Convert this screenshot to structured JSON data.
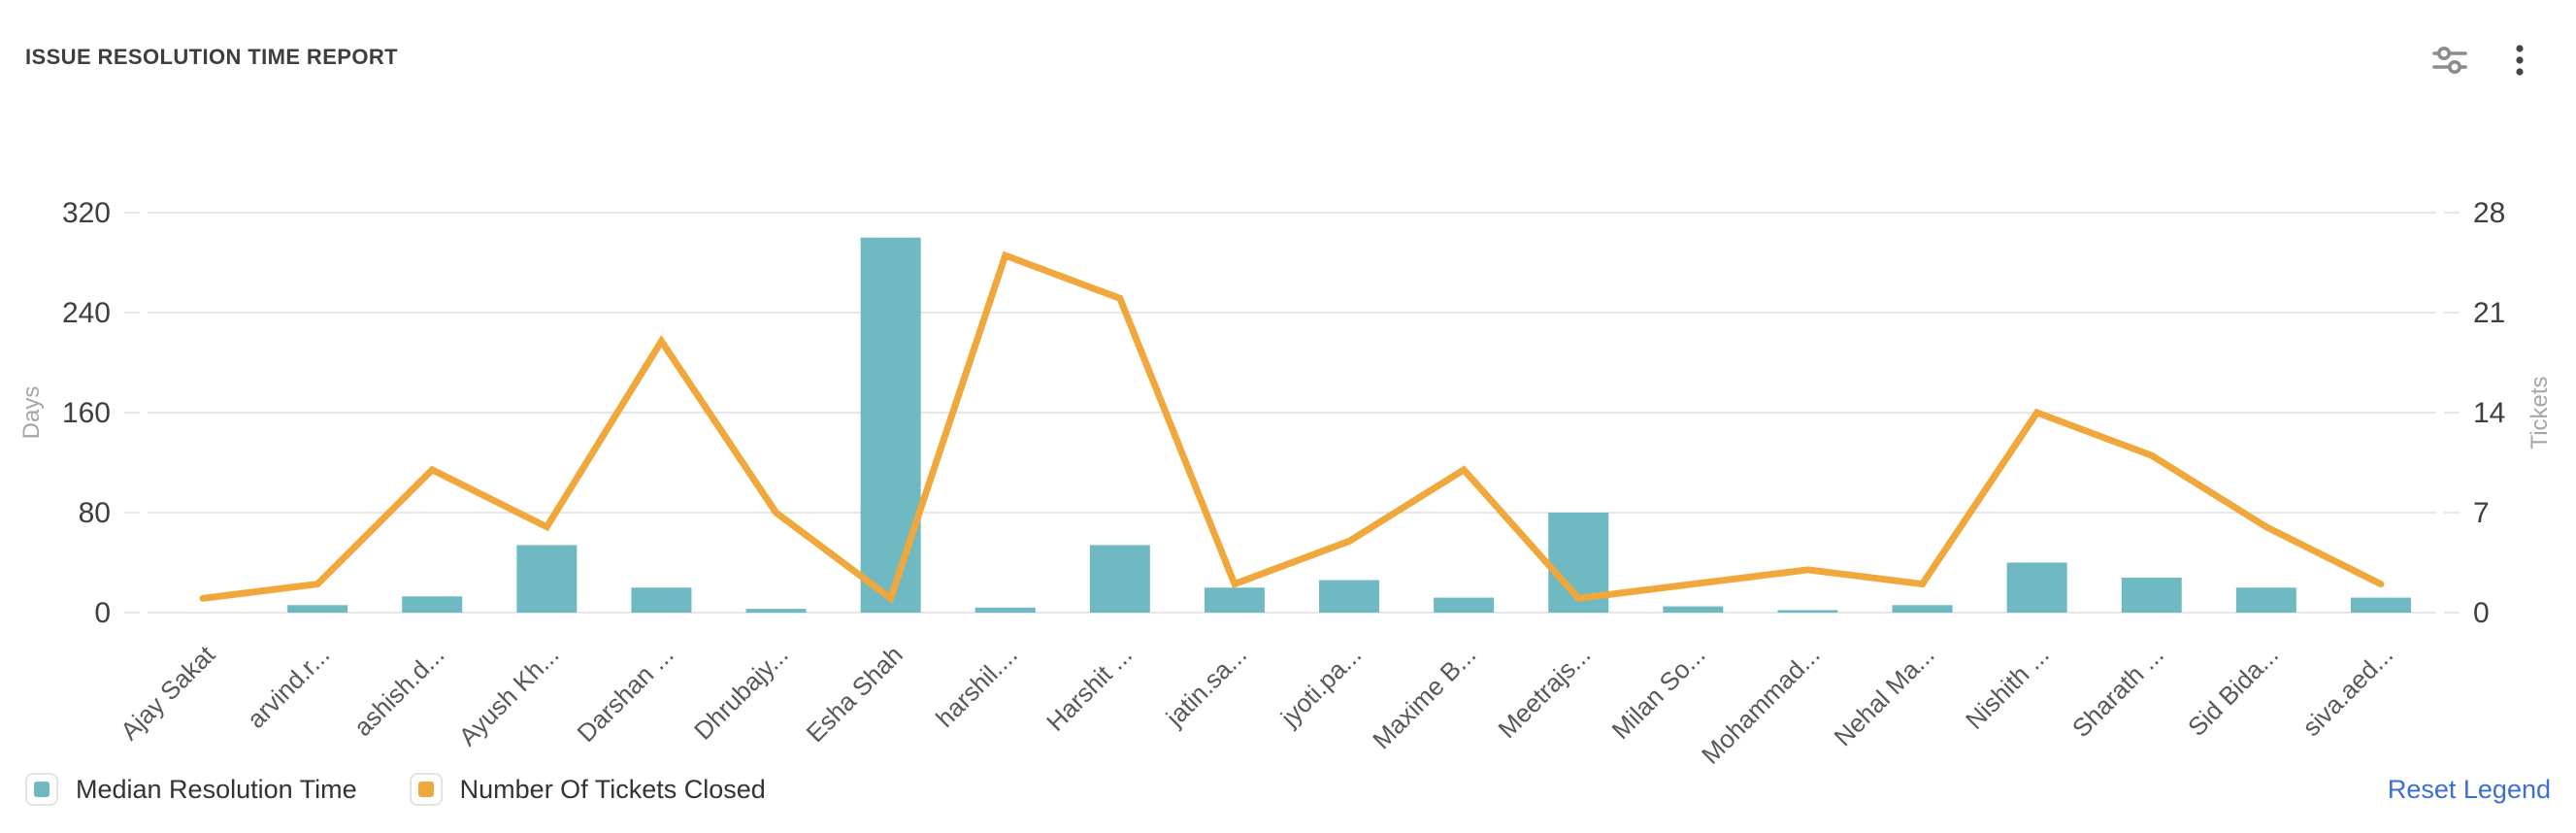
{
  "header": {
    "title": "ISSUE RESOLUTION TIME REPORT",
    "icons": {
      "filter": "filter-settings-icon",
      "more": "more-options-icon"
    }
  },
  "legend": {
    "items": [
      {
        "label": "Median Resolution Time",
        "color": "#6fb9c2"
      },
      {
        "label": "Number Of Tickets Closed",
        "color": "#f0a73b"
      }
    ],
    "reset_label": "Reset Legend",
    "reset_color": "#3c6ed6"
  },
  "chart_data": {
    "type": "bar",
    "subtype": "combo-bar-line-dual-axis",
    "title": "ISSUE RESOLUTION TIME REPORT",
    "categories": [
      "Ajay Sakat",
      "arvind.r...",
      "ashish.d...",
      "Ayush Kh...",
      "Darshan ...",
      "Dhrubajy...",
      "Esha Shah",
      "harshil....",
      "Harshit ...",
      "jatin.sa...",
      "jyoti.pa...",
      "Maxime B...",
      "Meetrajs...",
      "Milan So...",
      "Mohammad...",
      "Nehal Ma...",
      "Nishith ...",
      "Sharath ...",
      "Sid Bida...",
      "siva.aed..."
    ],
    "series": [
      {
        "name": "Median Resolution Time",
        "type": "bar",
        "axis": "left",
        "unit": "Days",
        "color": "#6fb9c2",
        "values": [
          0,
          6,
          13,
          54,
          20,
          3,
          300,
          4,
          54,
          20,
          26,
          12,
          80,
          5,
          2,
          6,
          40,
          28,
          20,
          12
        ]
      },
      {
        "name": "Number Of Tickets Closed",
        "type": "line",
        "axis": "right",
        "unit": "Tickets",
        "color": "#f0a73b",
        "values": [
          1,
          2,
          10,
          6,
          19,
          7,
          1,
          25,
          22,
          2,
          5,
          10,
          1,
          2,
          3,
          2,
          14,
          11,
          6,
          2
        ]
      }
    ],
    "left_axis": {
      "label": "Days",
      "ticks": [
        0,
        80,
        160,
        240,
        320
      ],
      "max": 320
    },
    "right_axis": {
      "label": "Tickets",
      "ticks": [
        0,
        7,
        14,
        21,
        28
      ],
      "max": 28
    },
    "grid": true,
    "legend_position": "bottom",
    "colors": {
      "grid": "#e7e7e7",
      "tick": "#3f3f3f",
      "axis_name": "#a6a6a6",
      "xlabel": "#585858"
    }
  }
}
